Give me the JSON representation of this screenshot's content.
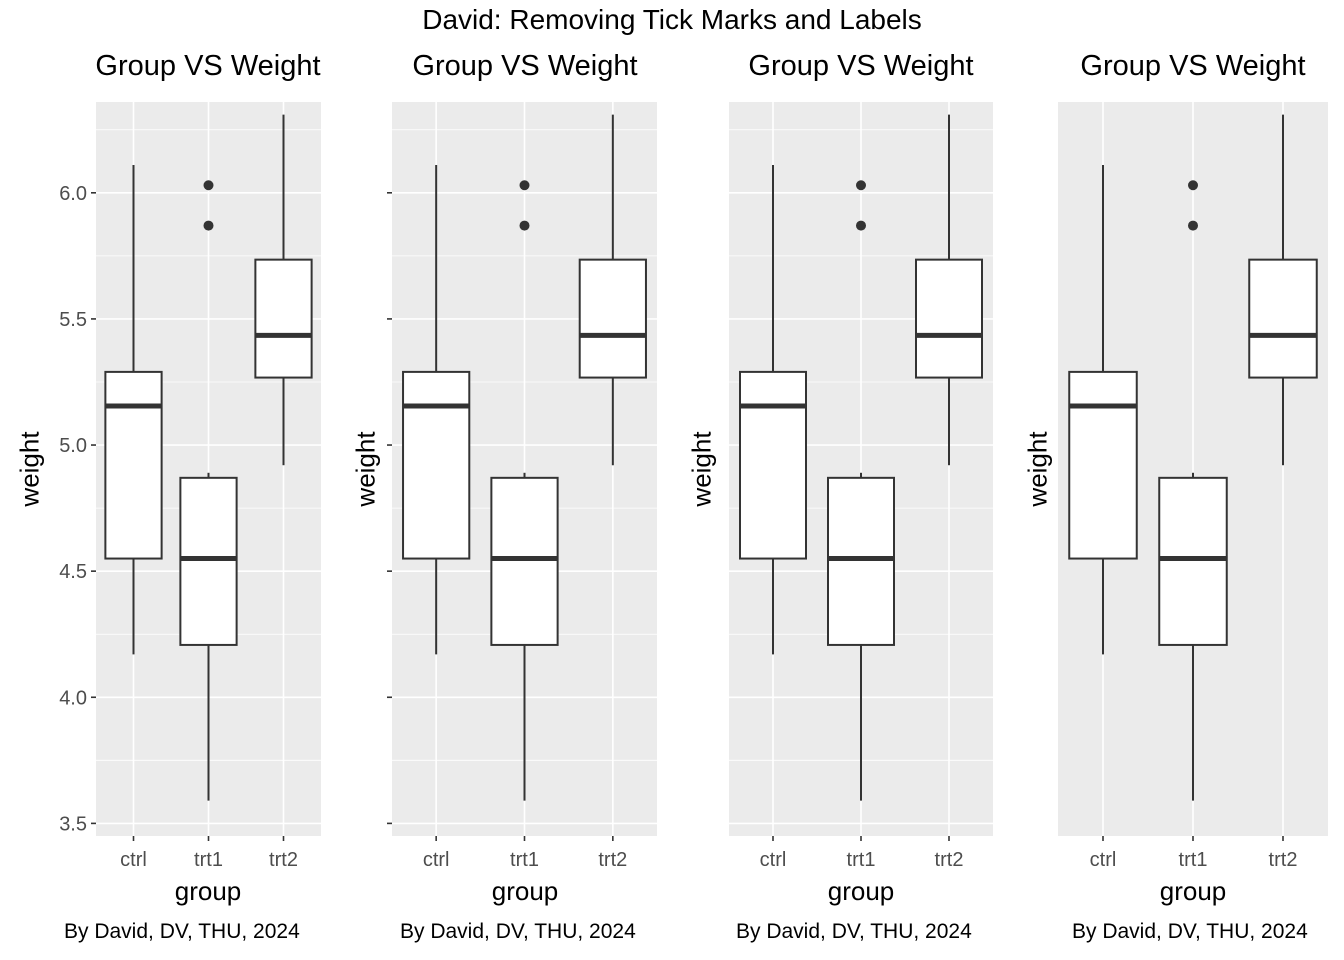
{
  "title": "David: Removing Tick Marks and Labels",
  "chart_data": [
    {
      "type": "box",
      "title": "Group VS Weight",
      "xlabel": "group",
      "ylabel": "weight",
      "caption": "By David, DV, THU, 2024",
      "ylim": [
        3.45,
        6.36
      ],
      "yticks": [
        3.5,
        4.0,
        4.5,
        5.0,
        5.5,
        6.0
      ],
      "ytick_labels": [
        "3.5",
        "4.0",
        "4.5",
        "5.0",
        "5.5",
        "6.0"
      ],
      "show_y_tick_labels": true,
      "show_y_tick_marks": true,
      "show_y_grid": true,
      "categories": [
        "ctrl",
        "trt1",
        "trt2"
      ],
      "boxes": [
        {
          "group": "ctrl",
          "min": 4.17,
          "q1": 4.55,
          "median": 5.155,
          "q3": 5.29,
          "max": 6.11,
          "outliers": []
        },
        {
          "group": "trt1",
          "min": 3.59,
          "q1": 4.2075,
          "median": 4.55,
          "q3": 4.87,
          "max": 4.89,
          "outliers": [
            5.87,
            6.03
          ]
        },
        {
          "group": "trt2",
          "min": 4.92,
          "q1": 5.2675,
          "median": 5.435,
          "q3": 5.735,
          "max": 6.31,
          "outliers": []
        }
      ]
    },
    {
      "type": "box",
      "title": "Group VS Weight",
      "xlabel": "group",
      "ylabel": "weight",
      "caption": "By David, DV, THU, 2024",
      "ylim": [
        3.45,
        6.36
      ],
      "yticks": [
        3.5,
        4.0,
        4.5,
        5.0,
        5.5,
        6.0
      ],
      "show_y_tick_labels": false,
      "show_y_tick_marks": true,
      "show_y_grid": true,
      "categories": [
        "ctrl",
        "trt1",
        "trt2"
      ],
      "boxes": [
        {
          "group": "ctrl",
          "min": 4.17,
          "q1": 4.55,
          "median": 5.155,
          "q3": 5.29,
          "max": 6.11,
          "outliers": []
        },
        {
          "group": "trt1",
          "min": 3.59,
          "q1": 4.2075,
          "median": 4.55,
          "q3": 4.87,
          "max": 4.89,
          "outliers": [
            5.87,
            6.03
          ]
        },
        {
          "group": "trt2",
          "min": 4.92,
          "q1": 5.2675,
          "median": 5.435,
          "q3": 5.735,
          "max": 6.31,
          "outliers": []
        }
      ]
    },
    {
      "type": "box",
      "title": "Group VS Weight",
      "xlabel": "group",
      "ylabel": "weight",
      "caption": "By David, DV, THU, 2024",
      "ylim": [
        3.45,
        6.36
      ],
      "yticks": [
        3.5,
        4.0,
        4.5,
        5.0,
        5.5,
        6.0
      ],
      "show_y_tick_labels": false,
      "show_y_tick_marks": false,
      "show_y_grid": true,
      "categories": [
        "ctrl",
        "trt1",
        "trt2"
      ],
      "boxes": [
        {
          "group": "ctrl",
          "min": 4.17,
          "q1": 4.55,
          "median": 5.155,
          "q3": 5.29,
          "max": 6.11,
          "outliers": []
        },
        {
          "group": "trt1",
          "min": 3.59,
          "q1": 4.2075,
          "median": 4.55,
          "q3": 4.87,
          "max": 4.89,
          "outliers": [
            5.87,
            6.03
          ]
        },
        {
          "group": "trt2",
          "min": 4.92,
          "q1": 5.2675,
          "median": 5.435,
          "q3": 5.735,
          "max": 6.31,
          "outliers": []
        }
      ]
    },
    {
      "type": "box",
      "title": "Group VS Weight",
      "xlabel": "group",
      "ylabel": "weight",
      "caption": "By David, DV, THU, 2024",
      "ylim": [
        3.45,
        6.36
      ],
      "yticks": [
        3.5,
        4.0,
        4.5,
        5.0,
        5.5,
        6.0
      ],
      "show_y_tick_labels": false,
      "show_y_tick_marks": false,
      "show_y_grid": false,
      "categories": [
        "ctrl",
        "trt1",
        "trt2"
      ],
      "boxes": [
        {
          "group": "ctrl",
          "min": 4.17,
          "q1": 4.55,
          "median": 5.155,
          "q3": 5.29,
          "max": 6.11,
          "outliers": []
        },
        {
          "group": "trt1",
          "min": 3.59,
          "q1": 4.2075,
          "median": 4.55,
          "q3": 4.87,
          "max": 4.89,
          "outliers": [
            5.87,
            6.03
          ]
        },
        {
          "group": "trt2",
          "min": 4.92,
          "q1": 5.2675,
          "median": 5.435,
          "q3": 5.735,
          "max": 6.31,
          "outliers": []
        }
      ]
    }
  ]
}
